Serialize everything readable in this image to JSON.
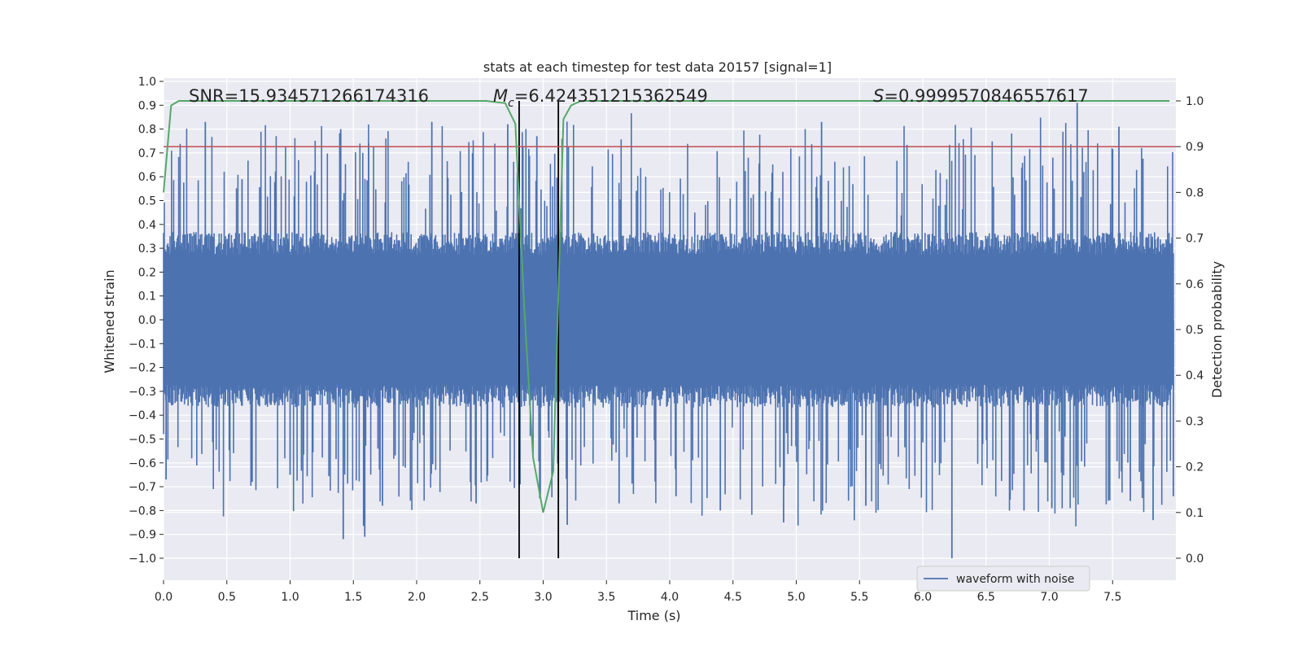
{
  "chart_data": {
    "type": "line",
    "title": "stats at each timestep for test data 20157 [signal=1]",
    "xlabel": "Time (s)",
    "ylabel": "Whitened strain",
    "ylabel_right": "Detection probability",
    "xlim": [
      0.0,
      8.0
    ],
    "ylim": [
      -1.0,
      1.0
    ],
    "ylim_right": [
      0.0,
      1.0
    ],
    "x_ticks": [
      "0.0",
      "0.5",
      "1.0",
      "1.5",
      "2.0",
      "2.5",
      "3.0",
      "3.5",
      "4.0",
      "4.5",
      "5.0",
      "5.5",
      "6.0",
      "6.5",
      "7.0",
      "7.5"
    ],
    "y_ticks": [
      "1.0",
      "0.9",
      "0.8",
      "0.7",
      "0.6",
      "0.5",
      "0.4",
      "0.3",
      "0.2",
      "0.1",
      "0.0",
      "−0.1",
      "−0.2",
      "−0.3",
      "−0.4",
      "−0.5",
      "−0.6",
      "−0.7",
      "−0.8",
      "−0.9",
      "−1.0"
    ],
    "y_ticks_right": [
      "1.0",
      "0.9",
      "0.8",
      "0.7",
      "0.6",
      "0.5",
      "0.4",
      "0.3",
      "0.2",
      "0.1",
      "0.0"
    ],
    "grid": true,
    "legend": {
      "position": "lower-right",
      "entries": [
        "waveform with noise"
      ]
    },
    "annotations": {
      "snr": "SNR=15.934571266174316",
      "mc_symbol": "M",
      "mc_sub": "c",
      "mc_value": "=6.424351215362549",
      "s_symbol": "S",
      "s_value": "=0.9999570846557617"
    },
    "threshold": {
      "axis": "right",
      "value": 0.9
    },
    "vertical_markers": [
      2.81,
      3.12
    ],
    "waveform": {
      "name": "waveform with noise",
      "t_start": 0.0,
      "t_end": 7.98,
      "core_amplitude": 0.32,
      "spikes": [
        {
          "t": 0.02,
          "v": -0.67
        },
        {
          "t": 0.33,
          "v": 0.83
        },
        {
          "t": 0.62,
          "v": 0.59
        },
        {
          "t": 0.7,
          "v": -0.68
        },
        {
          "t": 1.0,
          "v": -0.65
        },
        {
          "t": 1.4,
          "v": 0.8
        },
        {
          "t": 1.42,
          "v": -0.92
        },
        {
          "t": 1.59,
          "v": -0.91
        },
        {
          "t": 1.62,
          "v": 0.74
        },
        {
          "t": 1.73,
          "v": -0.78
        },
        {
          "t": 2.12,
          "v": 0.83
        },
        {
          "t": 2.47,
          "v": -0.77
        },
        {
          "t": 2.72,
          "v": 0.82
        },
        {
          "t": 2.95,
          "v": 0.77
        },
        {
          "t": 3.19,
          "v": -0.86
        },
        {
          "t": 3.6,
          "v": -0.77
        },
        {
          "t": 4.05,
          "v": -0.74
        },
        {
          "t": 4.4,
          "v": -0.8
        },
        {
          "t": 4.9,
          "v": -0.85
        },
        {
          "t": 5.2,
          "v": 0.83
        },
        {
          "t": 5.55,
          "v": -0.78
        },
        {
          "t": 6.23,
          "v": -1.0
        },
        {
          "t": 6.8,
          "v": -0.8
        },
        {
          "t": 7.02,
          "v": -0.79
        },
        {
          "t": 7.22,
          "v": 0.91
        },
        {
          "t": 7.55,
          "v": 0.81
        },
        {
          "t": 7.64,
          "v": -0.76
        },
        {
          "t": 7.82,
          "v": -0.84
        },
        {
          "t": 7.98,
          "v": -0.74
        }
      ]
    },
    "detection_probability": {
      "x": [
        0.0,
        0.06,
        0.12,
        0.3,
        1.0,
        2.0,
        2.55,
        2.7,
        2.78,
        2.85,
        2.92,
        3.0,
        3.08,
        3.16,
        3.22,
        3.3,
        4.0,
        5.0,
        6.0,
        7.0,
        7.95
      ],
      "y": [
        0.8,
        0.99,
        1.0,
        1.0,
        1.0,
        1.0,
        1.0,
        0.995,
        0.95,
        0.55,
        0.22,
        0.1,
        0.19,
        0.96,
        0.99,
        1.0,
        1.0,
        1.0,
        1.0,
        1.0,
        1.0
      ]
    },
    "colors": {
      "background": "#eaeaf2",
      "grid": "#ffffff",
      "waveform": "#4c72b0",
      "probability": "#55a868",
      "threshold": "#c44e52",
      "marker": "#000000"
    }
  }
}
